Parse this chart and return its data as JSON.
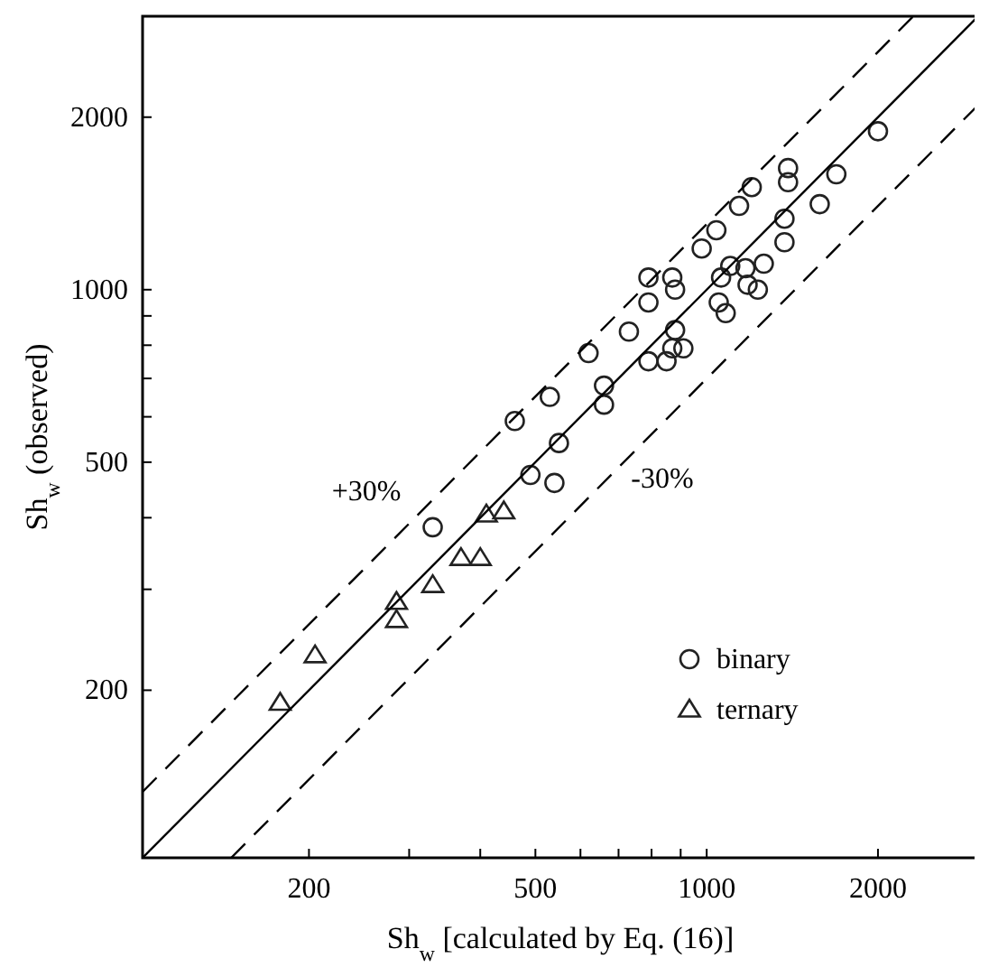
{
  "chart_data": {
    "type": "scatter",
    "xlabel": "Sh$_{w}$ [calculated by Eq. (16)]",
    "ylabel": "Sh$_{w}$ (observed)",
    "log": "xy",
    "legend": "bottom right",
    "xlim": [
      102,
      3000
    ],
    "ylim": [
      102,
      3000
    ],
    "xticks": [
      200,
      {
        "value": 300,
        "label": null
      },
      {
        "value": 400,
        "label": null
      },
      500,
      {
        "value": 600,
        "label": null
      },
      {
        "value": 700,
        "label": null
      },
      {
        "value": 800,
        "label": null
      },
      {
        "value": 900,
        "label": null
      },
      1000,
      2000
    ],
    "yticks": [
      200,
      {
        "value": 300,
        "label": null
      },
      {
        "value": 400,
        "label": null
      },
      500,
      {
        "value": 600,
        "label": null
      },
      {
        "value": 700,
        "label": null
      },
      {
        "value": 800,
        "label": null
      },
      {
        "value": 900,
        "label": null
      },
      1000,
      2000
    ],
    "series": [
      {
        "name": "binary",
        "marker": "circle",
        "color": "#222222",
        "x": [
          2000,
          1690,
          1580,
          1390,
          1390,
          1370,
          1370,
          1200,
          1140,
          1040,
          980,
          1260,
          1170,
          1100,
          1180,
          1230,
          1060,
          1050,
          1080,
          870,
          790,
          790,
          880,
          880,
          870,
          910,
          850,
          730,
          620,
          790,
          660,
          660,
          530,
          460,
          550,
          540,
          490,
          330
        ],
        "values": [
          1890,
          1590,
          1410,
          1630,
          1540,
          1330,
          1210,
          1510,
          1400,
          1270,
          1180,
          1110,
          1090,
          1100,
          1020,
          1000,
          1050,
          950,
          910,
          1050,
          1050,
          950,
          1000,
          850,
          790,
          790,
          750,
          845,
          775,
          750,
          680,
          630,
          650,
          590,
          540,
          460,
          475,
          385
        ]
      },
      {
        "name": "ternary",
        "marker": "triangle",
        "color": "#222222",
        "x": [
          440,
          410,
          400,
          370,
          330,
          285,
          285,
          205,
          178
        ],
        "values": [
          410,
          405,
          340,
          340,
          305,
          285,
          265,
          230,
          190
        ]
      },
      {
        "type": "line",
        "marker": "none",
        "line_style": "solid",
        "color": "#000000",
        "x": [
          102,
          3000
        ],
        "values": [
          102,
          3000
        ]
      },
      {
        "type": "line",
        "marker": "none",
        "line_style": "dashed",
        "color": "#000000",
        "x": [
          102,
          2308
        ],
        "values": [
          133,
          3000
        ]
      },
      {
        "type": "line",
        "marker": "none",
        "line_style": "dashed",
        "color": "#000000",
        "x": [
          146,
          3000
        ],
        "values": [
          102,
          2100
        ]
      }
    ],
    "annotations": [
      "+30%",
      "-30%"
    ]
  }
}
